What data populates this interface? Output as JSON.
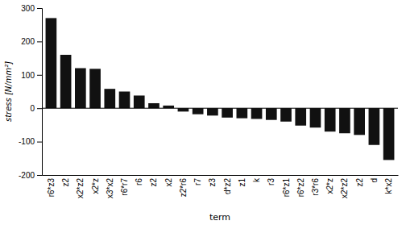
{
  "chart_data": {
    "type": "bar",
    "categories": [
      "r6*z3",
      "z2",
      "x2*z2",
      "x2*z",
      "x3*x2",
      "r6*r7",
      "r6",
      "z2",
      "x2",
      "z2*r6",
      "r7",
      "z3",
      "d*z2",
      "z1",
      "k",
      "r3",
      "r6*z1",
      "r6*z2",
      "r3*r6",
      "x2*z",
      "x2*z2",
      "z2",
      "d",
      "k*x2"
    ],
    "values": [
      270,
      160,
      120,
      118,
      58,
      50,
      38,
      15,
      8,
      -10,
      -18,
      -22,
      -28,
      -30,
      -32,
      -35,
      -40,
      -52,
      -58,
      -70,
      -75,
      -80,
      -110,
      -155
    ],
    "color": "#111111",
    "xlabel": "term",
    "ylabel": "stress [N/mm²]",
    "ylim": [
      -200,
      300
    ],
    "yticks": [
      -200,
      -100,
      0,
      100,
      200,
      300
    ],
    "grid": false
  }
}
